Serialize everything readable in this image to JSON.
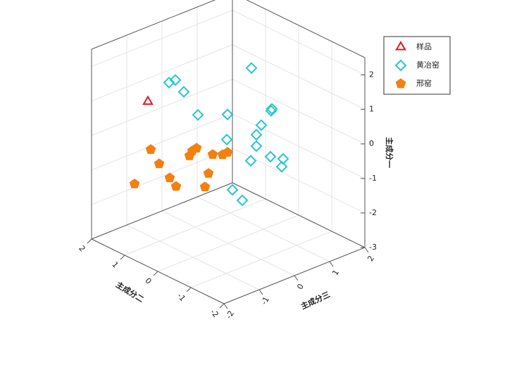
{
  "chart_data": {
    "type": "scatter3d",
    "x_label": "主成分二",
    "y_label": "主成分三",
    "z_label": "主成分一",
    "xlim": [
      -2,
      2
    ],
    "xticks": [
      -2,
      -1,
      0,
      1,
      2
    ],
    "ylim": [
      -2,
      2
    ],
    "yticks": [
      -2,
      -1,
      0,
      1,
      2
    ],
    "zlim": [
      -3,
      2.5
    ],
    "zticks": [
      -3,
      -2,
      -1,
      0,
      1,
      2
    ],
    "grid": true,
    "legend": "upper right",
    "series": [
      {
        "name": "样品",
        "color": "#e8141c",
        "marker": "triangle",
        "filled": false,
        "x": [
          1
        ],
        "y": [
          -1.34
        ],
        "z": [
          1.18
        ]
      },
      {
        "name": "黄冶窑",
        "color": "#27c6cf",
        "marker": "diamond",
        "filled": false,
        "x": [
          1,
          1,
          1,
          0,
          0,
          0,
          0,
          0,
          0,
          0,
          0,
          0,
          0,
          0,
          0,
          0,
          0,
          0
        ],
        "y": [
          -0.74,
          -0.56,
          -0.32,
          0.66,
          -0.86,
          -0.02,
          1.24,
          1.22,
          0.94,
          0.8,
          -0.04,
          0.8,
          0.64,
          1.2,
          1.56,
          1.52,
          0.12,
          0.4
        ],
        "z": [
          1.49,
          1.49,
          1.05,
          1.81,
          1.07,
          0.74,
          0.39,
          0.34,
          0.04,
          -0.18,
          0.02,
          -0.51,
          -0.87,
          -0.98,
          -1.19,
          -1.4,
          -1.5,
          -1.92
        ]
      },
      {
        "name": "邢窑",
        "color": "#f57f0f",
        "marker": "pentagon",
        "filled": true,
        "x": [
          1,
          1,
          1,
          1,
          1,
          1,
          1,
          1,
          1,
          1,
          1,
          1,
          1
        ],
        "y": [
          -1.26,
          -1.02,
          -1.72,
          -0.72,
          -0.54,
          0.04,
          -0.08,
          -0.16,
          0.5,
          0.78,
          0.92,
          0.38,
          0.28
        ],
        "z": [
          -0.24,
          -0.75,
          -1.05,
          -1.28,
          -1.6,
          -0.73,
          -0.76,
          -0.87,
          -1.1,
          -1.22,
          -1.21,
          -1.6,
          -1.95
        ]
      }
    ]
  }
}
